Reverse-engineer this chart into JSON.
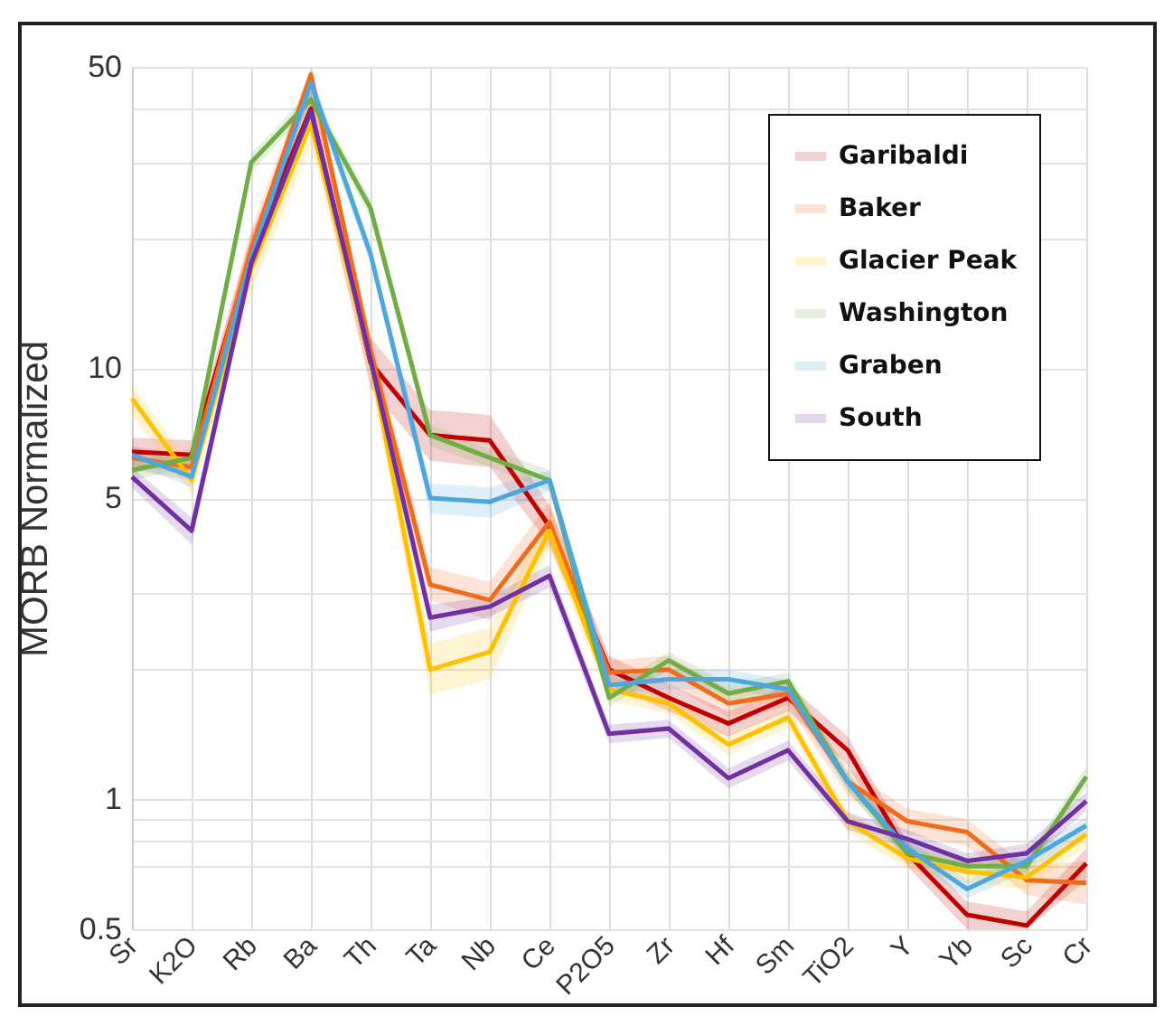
{
  "chart_data": {
    "type": "line",
    "ylabel": "MORB Normalized",
    "categories": [
      "Sr",
      "K2O",
      "Rb",
      "Ba",
      "Th",
      "Ta",
      "Nb",
      "Ce",
      "P2O5",
      "Zr",
      "Hf",
      "Sm",
      "TiO2",
      "Y",
      "Yb",
      "Sc",
      "Cr"
    ],
    "series": [
      {
        "name": "Garibaldi",
        "color": "#c00000",
        "values": [
          6.4,
          6.3,
          18.5,
          40,
          10.3,
          7.0,
          6.8,
          4.3,
          2.0,
          1.72,
          1.5,
          1.72,
          1.3,
          0.75,
          0.54,
          0.51,
          0.71
        ],
        "lower": [
          5.9,
          5.8,
          16.5,
          36,
          9.0,
          6.1,
          5.9,
          3.9,
          1.85,
          1.6,
          1.4,
          1.6,
          1.2,
          0.7,
          0.5,
          0.5,
          0.65
        ],
        "upper": [
          6.9,
          6.8,
          20.5,
          44,
          11.8,
          8.0,
          7.8,
          4.8,
          2.15,
          1.85,
          1.6,
          1.85,
          1.4,
          0.8,
          0.58,
          0.55,
          0.77
        ]
      },
      {
        "name": "Baker",
        "color": "#f26b1d",
        "values": [
          6.2,
          5.9,
          19,
          48,
          11,
          3.15,
          2.9,
          4.4,
          1.97,
          2.0,
          1.67,
          1.76,
          1.1,
          0.89,
          0.84,
          0.65,
          0.64
        ],
        "lower": [
          5.8,
          5.5,
          17,
          43,
          10,
          2.9,
          2.6,
          3.9,
          1.85,
          1.85,
          1.55,
          1.65,
          1.02,
          0.83,
          0.78,
          0.6,
          0.57
        ],
        "upper": [
          6.6,
          6.3,
          21,
          50,
          12,
          3.45,
          3.2,
          4.9,
          2.1,
          2.15,
          1.8,
          1.88,
          1.18,
          0.95,
          0.9,
          0.7,
          0.72
        ]
      },
      {
        "name": "Glacier Peak",
        "color": "#ffc000",
        "values": [
          8.5,
          5.5,
          17,
          37,
          10.5,
          2.0,
          2.2,
          4.2,
          1.8,
          1.67,
          1.34,
          1.55,
          0.89,
          0.73,
          0.68,
          0.66,
          0.83
        ],
        "lower": [
          7.8,
          5.1,
          15,
          33,
          9.4,
          1.75,
          1.9,
          3.8,
          1.7,
          1.58,
          1.27,
          1.47,
          0.84,
          0.69,
          0.64,
          0.62,
          0.78
        ],
        "upper": [
          9.2,
          5.9,
          19,
          41,
          11.6,
          2.3,
          2.5,
          4.6,
          1.9,
          1.76,
          1.41,
          1.63,
          0.94,
          0.77,
          0.72,
          0.7,
          0.88
        ]
      },
      {
        "name": "Washington",
        "color": "#70ad47",
        "values": [
          5.8,
          6.2,
          30,
          42,
          23.5,
          7.0,
          6.2,
          5.5,
          1.72,
          2.1,
          1.76,
          1.88,
          1.1,
          0.75,
          0.7,
          0.7,
          1.13
        ],
        "lower": [
          5.5,
          5.9,
          28.5,
          40,
          22.3,
          6.6,
          5.9,
          5.2,
          1.64,
          2.0,
          1.67,
          1.79,
          1.05,
          0.71,
          0.67,
          0.67,
          1.07
        ],
        "upper": [
          6.1,
          6.5,
          31.5,
          44,
          24.7,
          7.4,
          6.5,
          5.8,
          1.8,
          2.2,
          1.85,
          1.97,
          1.15,
          0.79,
          0.73,
          0.73,
          1.19
        ]
      },
      {
        "name": "Graben",
        "color": "#4ea6dc",
        "values": [
          6.3,
          5.6,
          18,
          46,
          18.4,
          5.0,
          4.9,
          5.5,
          1.84,
          1.9,
          1.9,
          1.8,
          1.1,
          0.77,
          0.62,
          0.72,
          0.87
        ],
        "lower": [
          6.0,
          5.3,
          17,
          43,
          17.5,
          4.6,
          4.5,
          5.2,
          1.75,
          1.8,
          1.8,
          1.71,
          1.05,
          0.73,
          0.59,
          0.68,
          0.83
        ],
        "upper": [
          6.6,
          5.9,
          19,
          49,
          19.3,
          5.4,
          5.3,
          5.8,
          1.93,
          2.0,
          2.0,
          1.89,
          1.15,
          0.81,
          0.65,
          0.76,
          0.91
        ]
      },
      {
        "name": "South",
        "color": "#7030a0",
        "values": [
          5.6,
          4.2,
          17.5,
          39.5,
          10.5,
          2.64,
          2.8,
          3.3,
          1.42,
          1.46,
          1.12,
          1.3,
          0.89,
          0.81,
          0.72,
          0.75,
          0.99
        ],
        "lower": [
          5.3,
          3.9,
          16.5,
          37.5,
          9.8,
          2.45,
          2.65,
          3.1,
          1.35,
          1.39,
          1.06,
          1.23,
          0.85,
          0.77,
          0.69,
          0.71,
          0.94
        ],
        "upper": [
          5.9,
          4.5,
          18.5,
          41.5,
          11.2,
          2.83,
          2.95,
          3.5,
          1.49,
          1.53,
          1.18,
          1.37,
          0.93,
          0.85,
          0.75,
          0.79,
          1.04
        ]
      }
    ],
    "log": true,
    "ylim": [
      0.5,
      50
    ],
    "yticks": [
      0.5,
      {
        "value": 0.7,
        "label": null
      },
      {
        "value": 0.8,
        "label": null
      },
      {
        "value": 0.9,
        "label": null
      },
      1,
      {
        "value": 2,
        "label": null
      },
      {
        "value": 3,
        "label": null
      },
      5,
      10,
      {
        "value": 20,
        "label": null
      },
      {
        "value": 30,
        "label": null
      },
      {
        "value": 40,
        "label": null
      },
      50
    ],
    "grid": true,
    "legend": "top right"
  }
}
